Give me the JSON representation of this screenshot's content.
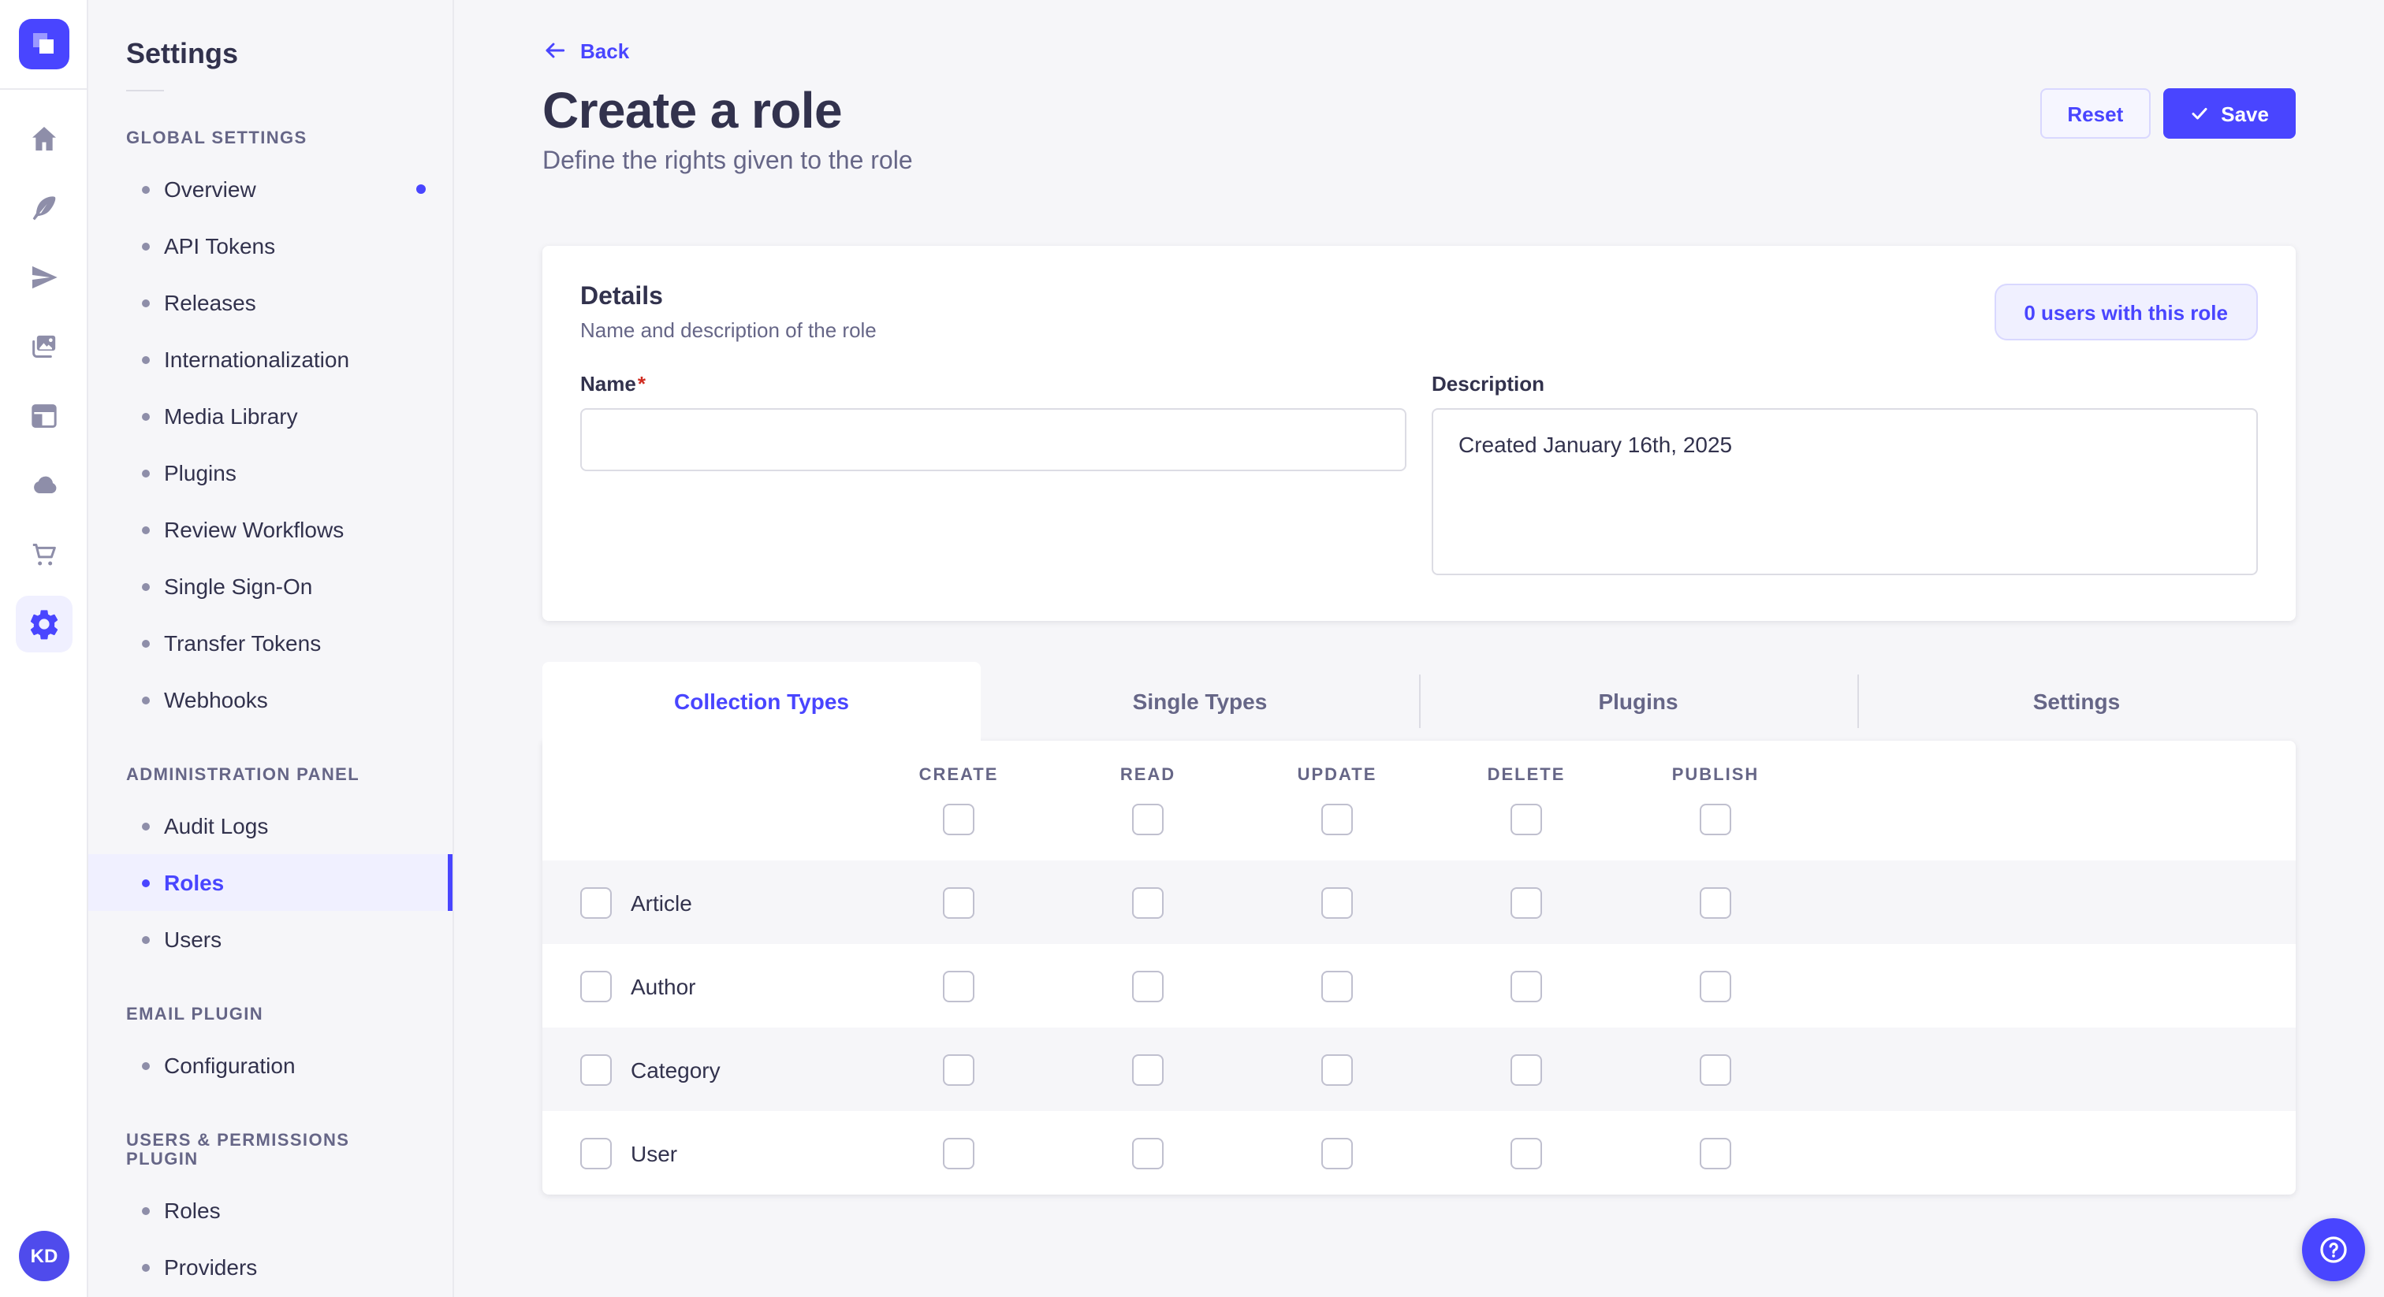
{
  "colors": {
    "primary": "#4945ff",
    "primary_light_bg": "#f0f0ff",
    "primary_border": "#d9d8ff",
    "neutral_bg": "#f6f6f9",
    "border": "#eaeaef",
    "text_dark": "#32324d",
    "text_muted": "#666687",
    "icon_gray": "#8e8ea9",
    "required_red": "#d02b20"
  },
  "rail": {
    "icons": [
      {
        "name": "strapi-logo"
      },
      {
        "name": "home-icon"
      },
      {
        "name": "feather-icon"
      },
      {
        "name": "send-icon"
      },
      {
        "name": "media-images-icon"
      },
      {
        "name": "layout-icon"
      },
      {
        "name": "cloud-icon"
      },
      {
        "name": "cart-icon"
      },
      {
        "name": "gear-icon",
        "active": true
      }
    ],
    "avatar_initials": "KD"
  },
  "sidebar": {
    "title": "Settings",
    "sections": [
      {
        "label": "GLOBAL SETTINGS",
        "items": [
          {
            "label": "Overview",
            "notification_dot": true
          },
          {
            "label": "API Tokens"
          },
          {
            "label": "Releases"
          },
          {
            "label": "Internationalization"
          },
          {
            "label": "Media Library"
          },
          {
            "label": "Plugins"
          },
          {
            "label": "Review Workflows"
          },
          {
            "label": "Single Sign-On"
          },
          {
            "label": "Transfer Tokens"
          },
          {
            "label": "Webhooks"
          }
        ]
      },
      {
        "label": "ADMINISTRATION PANEL",
        "items": [
          {
            "label": "Audit Logs"
          },
          {
            "label": "Roles",
            "active": true
          },
          {
            "label": "Users"
          }
        ]
      },
      {
        "label": "EMAIL PLUGIN",
        "items": [
          {
            "label": "Configuration"
          }
        ]
      },
      {
        "label": "USERS & PERMISSIONS PLUGIN",
        "items": [
          {
            "label": "Roles"
          },
          {
            "label": "Providers"
          }
        ]
      }
    ]
  },
  "header": {
    "back_label": "Back",
    "title": "Create a role",
    "subtitle": "Define the rights given to the role",
    "reset_label": "Reset",
    "save_label": "Save"
  },
  "details": {
    "title": "Details",
    "subtitle": "Name and description of the role",
    "users_button_label": "0 users with this role",
    "name_label": "Name",
    "name_required_mark": "*",
    "name_value": "",
    "description_label": "Description",
    "description_value": "Created January 16th, 2025"
  },
  "permissions": {
    "tabs": [
      {
        "label": "Collection Types",
        "active": true
      },
      {
        "label": "Single Types"
      },
      {
        "label": "Plugins"
      },
      {
        "label": "Settings"
      }
    ],
    "columns": [
      "CREATE",
      "READ",
      "UPDATE",
      "DELETE",
      "PUBLISH"
    ],
    "header_checkboxes_checked": [
      false,
      false,
      false,
      false,
      false
    ],
    "rows": [
      {
        "label": "Article",
        "row_checked": false,
        "checked": [
          false,
          false,
          false,
          false,
          false
        ]
      },
      {
        "label": "Author",
        "row_checked": false,
        "checked": [
          false,
          false,
          false,
          false,
          false
        ]
      },
      {
        "label": "Category",
        "row_checked": false,
        "checked": [
          false,
          false,
          false,
          false,
          false
        ]
      },
      {
        "label": "User",
        "row_checked": false,
        "checked": [
          false,
          false,
          false,
          false,
          false
        ]
      }
    ]
  },
  "help": {
    "icon": "question-mark-icon"
  }
}
